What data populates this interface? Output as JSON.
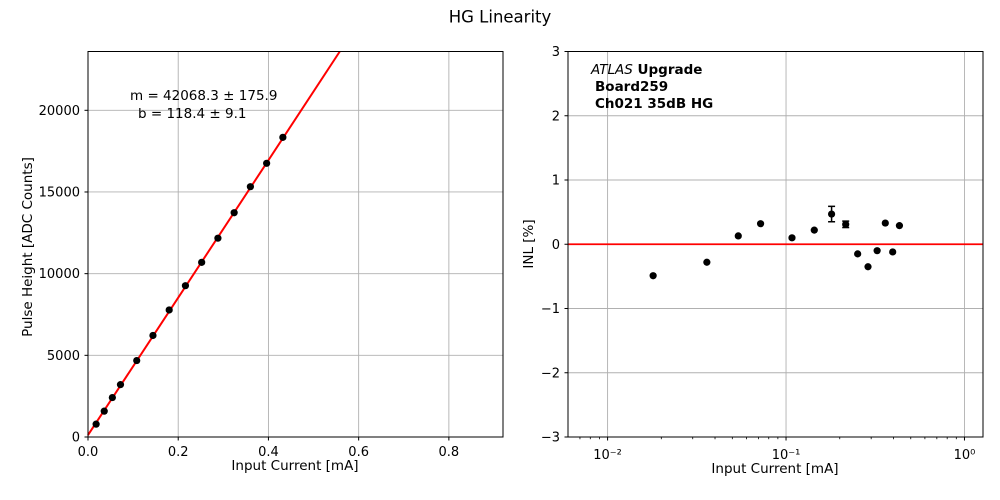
{
  "title": "HG Linearity",
  "colors": {
    "background": "#ffffff",
    "marker": "#000000",
    "fit_line": "#ff0000",
    "reference_line": "#ff0000",
    "grid": "#b0b0b0",
    "axis": "#000000"
  },
  "chart_data": [
    {
      "type": "scatter",
      "title": "",
      "xlabel": "Input Current [mA]",
      "ylabel": "Pulse Height [ADC Counts]",
      "xscale": "linear",
      "xlim": [
        0,
        0.92
      ],
      "ylim": [
        0,
        23600
      ],
      "grid": true,
      "legend": "none",
      "xticks": {
        "values": [
          0.0,
          0.2,
          0.4,
          0.6,
          0.8
        ],
        "labels": [
          "0.0",
          "0.2",
          "0.4",
          "0.6",
          "0.8"
        ]
      },
      "yticks": {
        "values": [
          0,
          5000,
          10000,
          15000,
          20000
        ],
        "labels": [
          "0",
          "5000",
          "10000",
          "15000",
          "20000"
        ]
      },
      "annotation": {
        "line1": "m = 42068.3 ± 175.9",
        "line2": "b = 118.4 ± 9.1"
      },
      "fit_line": {
        "m": 42068.3,
        "m_err": 175.9,
        "b": 118.4,
        "b_err": 9.1,
        "color": "#ff0000"
      },
      "series": [
        {
          "name": "pulse-height-data",
          "marker": "circle",
          "color": "#000000",
          "x": [
            0.018,
            0.036,
            0.054,
            0.072,
            0.108,
            0.144,
            0.18,
            0.216,
            0.252,
            0.288,
            0.324,
            0.36,
            0.396,
            0.432
          ],
          "y": [
            786,
            1582,
            2414,
            3206,
            4680,
            6216,
            7777,
            9262,
            10692,
            12170,
            13730,
            15323,
            16756,
            18345
          ]
        }
      ]
    },
    {
      "type": "scatter",
      "title": "",
      "xlabel": "Input Current [mA]",
      "ylabel": "INL [%]",
      "xscale": "log",
      "xlim": [
        0.006,
        1.27
      ],
      "ylim": [
        -3,
        3
      ],
      "grid": true,
      "legend": "none",
      "xticks": {
        "values": [
          0.01,
          0.1,
          1
        ],
        "labels": [
          "10⁻²",
          "10⁻¹",
          "10⁰"
        ]
      },
      "yticks": {
        "values": [
          -3,
          -2,
          -1,
          0,
          1,
          2,
          3
        ],
        "labels": [
          "−3",
          "−2",
          "−1",
          "0",
          "1",
          "2",
          "3"
        ]
      },
      "annotation": {
        "line1_italic": "ATLAS",
        "line1_bold": " Upgrade",
        "line2": "Board259",
        "line3": "Ch021 35dB HG"
      },
      "reference_line": {
        "y": 0,
        "color": "#ff0000"
      },
      "series": [
        {
          "name": "inl-data",
          "marker": "circle",
          "color": "#000000",
          "x": [
            0.018,
            0.036,
            0.054,
            0.072,
            0.108,
            0.144,
            0.18,
            0.216,
            0.252,
            0.288,
            0.324,
            0.36,
            0.396,
            0.432
          ],
          "y": [
            -0.49,
            -0.28,
            0.13,
            0.32,
            0.1,
            0.22,
            0.47,
            0.31,
            -0.15,
            -0.35,
            -0.1,
            0.33,
            -0.12,
            0.29
          ],
          "yerr": [
            0,
            0,
            0,
            0,
            0,
            0,
            0.12,
            0.05,
            0,
            0,
            0,
            0,
            0,
            0
          ]
        }
      ]
    }
  ]
}
